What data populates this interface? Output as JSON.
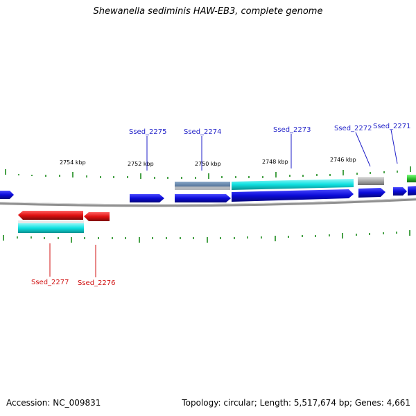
{
  "title": "Shewanella sediminis HAW-EB3, complete genome",
  "footer": {
    "accession": "Accession: NC_009831",
    "summary": "Topology: circular; Length: 5,517,674 bp; Genes: 4,661"
  },
  "colors": {
    "forward_label": "#1f1fc8",
    "reverse_label": "#d01010",
    "tick": "#1a8a1a",
    "backbone": "#808080",
    "blue_gene": "#0a0ad8",
    "cyan_gene": "#10e0e0",
    "red_gene": "#e01010",
    "gray_gene": "#a8a8a8",
    "steel_gene": "#5a7aa0",
    "green_gene": "#30c030"
  },
  "scale_labels": [
    "2754 kbp",
    "2752 kbp",
    "2750 kbp",
    "2748 kbp",
    "2746 kbp"
  ],
  "forward_genes": [
    "Ssed_2275",
    "Ssed_2274",
    "Ssed_2273",
    "Ssed_2272",
    "Ssed_2271"
  ],
  "reverse_genes": [
    "Ssed_2277",
    "Ssed_2276"
  ]
}
